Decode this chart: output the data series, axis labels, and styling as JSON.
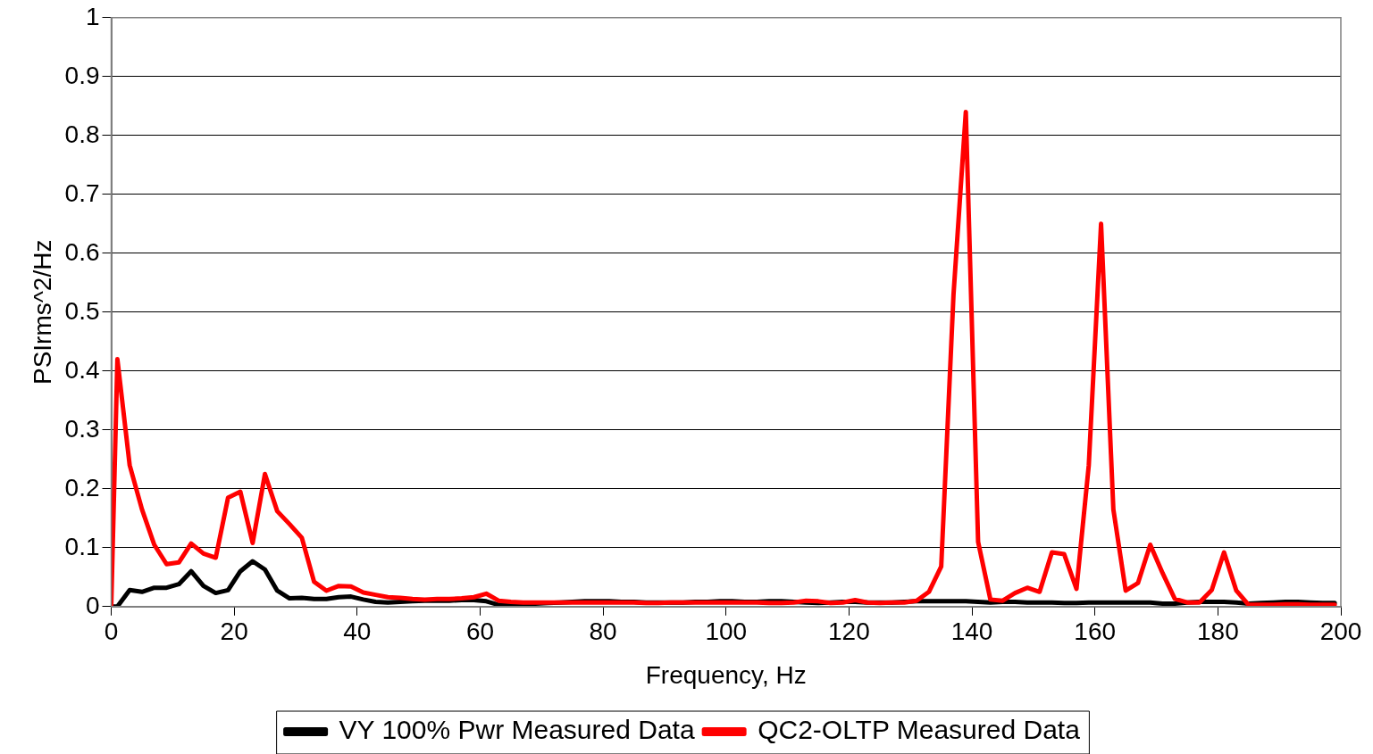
{
  "chart_data": {
    "type": "line",
    "xlabel": "Frequency, Hz",
    "ylabel": "PSIrms^2/Hz",
    "x": [
      0,
      1,
      3,
      5,
      7,
      9,
      11,
      13,
      15,
      17,
      19,
      21,
      23,
      25,
      27,
      29,
      31,
      33,
      35,
      37,
      39,
      41,
      43,
      45,
      47,
      49,
      51,
      53,
      55,
      57,
      59,
      61,
      63,
      65,
      67,
      69,
      71,
      73,
      75,
      77,
      79,
      81,
      83,
      85,
      87,
      89,
      91,
      93,
      95,
      97,
      99,
      101,
      103,
      105,
      107,
      109,
      111,
      113,
      115,
      117,
      119,
      121,
      123,
      125,
      127,
      129,
      131,
      133,
      135,
      137,
      139,
      141,
      143,
      145,
      147,
      149,
      151,
      153,
      155,
      157,
      159,
      161,
      163,
      165,
      167,
      169,
      171,
      173,
      175,
      177,
      179,
      181,
      183,
      185,
      187,
      189,
      191,
      193,
      195,
      197,
      199
    ],
    "series": [
      {
        "name": "VY 100% Pwr Measured Data",
        "color": "#000000",
        "values": [
          0,
          0,
          0.028,
          0.025,
          0.032,
          0.032,
          0.038,
          0.06,
          0.035,
          0.023,
          0.028,
          0.06,
          0.077,
          0.063,
          0.027,
          0.014,
          0.015,
          0.013,
          0.013,
          0.016,
          0.017,
          0.012,
          0.008,
          0.007,
          0.008,
          0.009,
          0.01,
          0.01,
          0.01,
          0.011,
          0.011,
          0.009,
          0.003,
          0.003,
          0.004,
          0.005,
          0.006,
          0.007,
          0.008,
          0.009,
          0.009,
          0.009,
          0.008,
          0.008,
          0.007,
          0.007,
          0.007,
          0.007,
          0.008,
          0.008,
          0.009,
          0.009,
          0.008,
          0.008,
          0.009,
          0.009,
          0.008,
          0.007,
          0.006,
          0.007,
          0.008,
          0.008,
          0.007,
          0.007,
          0.007,
          0.008,
          0.009,
          0.009,
          0.009,
          0.009,
          0.009,
          0.008,
          0.007,
          0.008,
          0.008,
          0.007,
          0.007,
          0.007,
          0.006,
          0.006,
          0.007,
          0.007,
          0.007,
          0.007,
          0.007,
          0.007,
          0.005,
          0.005,
          0.007,
          0.008,
          0.008,
          0.008,
          0.007,
          0.005,
          0.006,
          0.007,
          0.008,
          0.008,
          0.007,
          0.006,
          0.006
        ]
      },
      {
        "name": "QC2-OLTP Measured Data",
        "color": "#ff0000",
        "values": [
          0,
          0.42,
          0.24,
          0.165,
          0.105,
          0.072,
          0.075,
          0.107,
          0.09,
          0.083,
          0.185,
          0.195,
          0.108,
          0.225,
          0.162,
          0.14,
          0.117,
          0.042,
          0.027,
          0.035,
          0.034,
          0.024,
          0.02,
          0.016,
          0.015,
          0.013,
          0.012,
          0.013,
          0.013,
          0.014,
          0.016,
          0.022,
          0.01,
          0.008,
          0.007,
          0.007,
          0.007,
          0.007,
          0.007,
          0.007,
          0.007,
          0.007,
          0.007,
          0.007,
          0.006,
          0.006,
          0.007,
          0.007,
          0.007,
          0.007,
          0.007,
          0.007,
          0.007,
          0.007,
          0.006,
          0.006,
          0.007,
          0.01,
          0.009,
          0.006,
          0.007,
          0.011,
          0.007,
          0.006,
          0.007,
          0.007,
          0.01,
          0.025,
          0.068,
          0.53,
          0.84,
          0.11,
          0.012,
          0.01,
          0.023,
          0.032,
          0.025,
          0.092,
          0.089,
          0.03,
          0.24,
          0.65,
          0.165,
          0.027,
          0.04,
          0.105,
          0.057,
          0.013,
          0.007,
          0.007,
          0.028,
          0.092,
          0.027,
          0.003,
          0.003,
          0.003,
          0.004,
          0.004,
          0.003,
          0.003,
          0.003
        ]
      }
    ],
    "xlim": [
      0,
      200
    ],
    "xticks": [
      0,
      20,
      40,
      60,
      80,
      100,
      120,
      140,
      160,
      180,
      200
    ],
    "ylim": [
      0,
      1
    ],
    "yticks": [
      0,
      0.1,
      0.2,
      0.3,
      0.4,
      0.5,
      0.6,
      0.7,
      0.8,
      0.9,
      1
    ],
    "grid": "y",
    "legend": "bottom",
    "marker": "none",
    "line_style": "solid"
  }
}
